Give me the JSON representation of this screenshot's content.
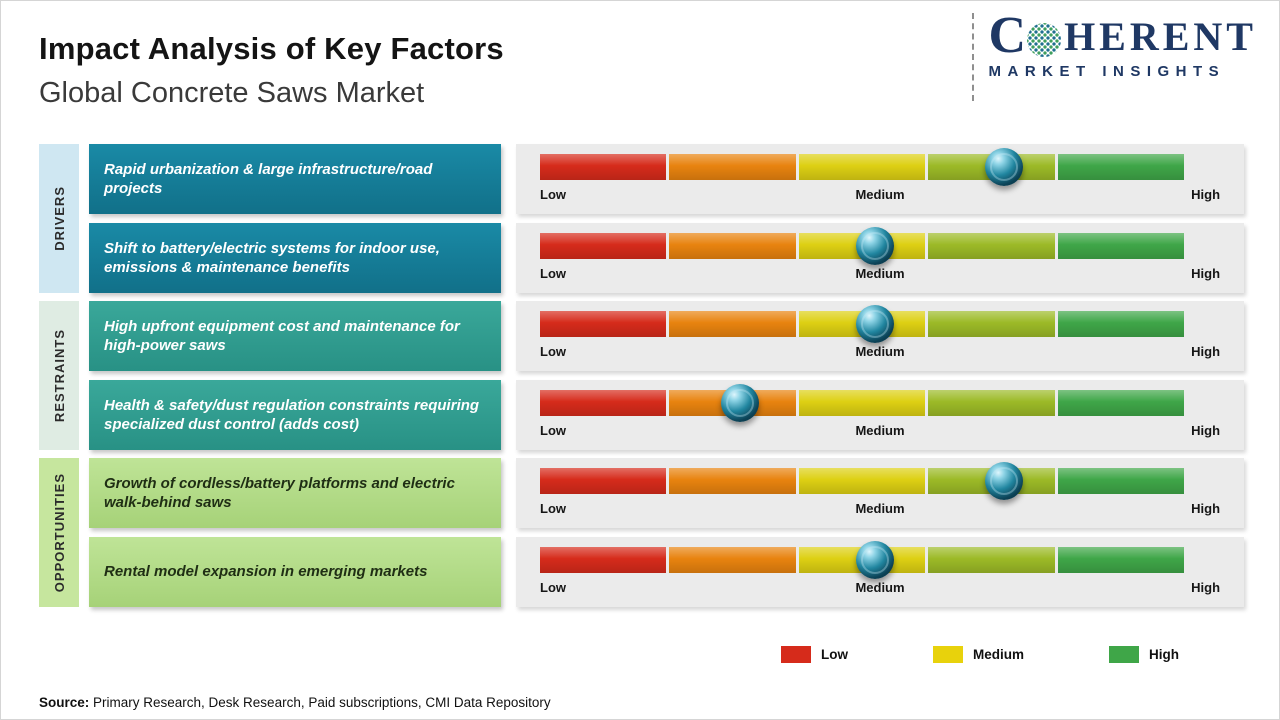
{
  "header": {
    "title": "Impact Analysis of Key Factors",
    "subtitle": "Global Concrete Saws Market"
  },
  "logo": {
    "brand_first": "C",
    "brand_rest": "HERENT",
    "tagline": "MARKET INSIGHTS",
    "brand_color": "#1f3864",
    "globe_icon": "dotted-globe-icon"
  },
  "scale": {
    "low": "Low",
    "medium": "Medium",
    "high": "High"
  },
  "groups": [
    {
      "label": "DRIVERS",
      "rail_color": "#cfe7f2",
      "card_color": "#147f9b",
      "rows": [
        {
          "text": "Rapid urbanization & large infrastructure/road projects",
          "marker_pos_pct": 72,
          "impact": "Medium-High"
        },
        {
          "text": "Shift to battery/electric systems for indoor use, emissions & maintenance benefits",
          "marker_pos_pct": 52,
          "impact": "Medium"
        }
      ]
    },
    {
      "label": "RESTRAINTS",
      "rail_color": "#dfece3",
      "card_color": "#2f9c8f",
      "rows": [
        {
          "text": "High upfront equipment cost and maintenance for high-power saws",
          "marker_pos_pct": 52,
          "impact": "Medium"
        },
        {
          "text": "Health & safety/dust regulation constraints requiring specialized dust control (adds cost)",
          "marker_pos_pct": 31,
          "impact": "Low-Medium"
        }
      ]
    },
    {
      "label": "OPPORTUNITIES",
      "rail_color": "#c6e69e",
      "card_color": "#b3dc8a",
      "rows": [
        {
          "text": "Growth of cordless/battery platforms and electric walk-behind saws",
          "marker_pos_pct": 72,
          "impact": "Medium-High"
        },
        {
          "text": "Rental model expansion in emerging markets",
          "marker_pos_pct": 52,
          "impact": "Medium"
        }
      ]
    }
  ],
  "segment_colors": [
    "#d62b1b",
    "#e8830f",
    "#ddd013",
    "#9cba27",
    "#3fa648"
  ],
  "legend": [
    {
      "label": "Low",
      "color": "#d62b1b"
    },
    {
      "label": "Medium",
      "color": "#e8d20c"
    },
    {
      "label": "High",
      "color": "#3fa648"
    }
  ],
  "source": {
    "label": "Source:",
    "text": " Primary Research, Desk Research, Paid subscriptions, CMI Data Repository"
  },
  "chart_data": {
    "type": "bar",
    "title": "Impact Analysis of Key Factors",
    "subtitle": "Global Concrete Saws Market",
    "scale_labels": [
      "Low",
      "Medium",
      "High"
    ],
    "categories": [
      "Rapid urbanization & large infrastructure/road projects",
      "Shift to battery/electric systems for indoor use, emissions & maintenance benefits",
      "High upfront equipment cost and maintenance for high-power saws",
      "Health & safety/dust regulation constraints requiring specialized dust control (adds cost)",
      "Growth of cordless/battery platforms and electric walk-behind saws",
      "Rental model expansion in emerging markets"
    ],
    "category_groups": [
      "Drivers",
      "Drivers",
      "Restraints",
      "Restraints",
      "Opportunities",
      "Opportunities"
    ],
    "series": [
      {
        "name": "Impact position (% along Low-to-High scale)",
        "values": [
          72,
          52,
          52,
          31,
          72,
          52
        ]
      }
    ],
    "impact_levels": [
      "Medium-High",
      "Medium",
      "Medium",
      "Low-Medium",
      "Medium-High",
      "Medium"
    ],
    "xlim": [
      0,
      100
    ],
    "legend_position": "bottom",
    "grid": false
  }
}
